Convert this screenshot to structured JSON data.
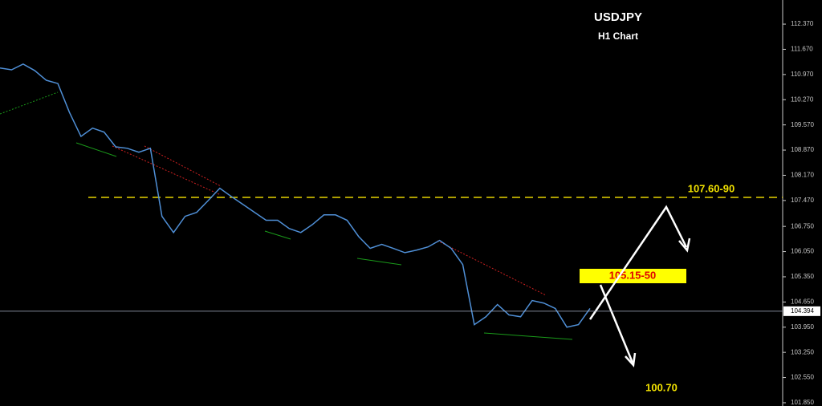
{
  "chart_data": {
    "type": "line",
    "title": "USDJPY",
    "subtitle": "H1 Chart",
    "categories": [
      null,
      null,
      null,
      null,
      null,
      null,
      null,
      null,
      null,
      null,
      null,
      null,
      null,
      null,
      null,
      null,
      null,
      null,
      null,
      null,
      null,
      null,
      null,
      null,
      null,
      null,
      null,
      null,
      null,
      null,
      null,
      null,
      null,
      null,
      null,
      null,
      null,
      null,
      null,
      null,
      null,
      null,
      null,
      null,
      null,
      null,
      null,
      null,
      null,
      null,
      null,
      null
    ],
    "series": [
      {
        "color": "#4f8fd6",
        "values": [
          111.15,
          111.1,
          111.26,
          111.08,
          110.81,
          110.72,
          109.92,
          109.25,
          109.48,
          109.37,
          108.96,
          108.92,
          108.81,
          108.92,
          107.03,
          106.58,
          107.03,
          107.14,
          107.47,
          107.81,
          107.58,
          107.36,
          107.14,
          106.92,
          106.92,
          106.69,
          106.58,
          106.8,
          107.07,
          107.07,
          106.92,
          106.47,
          106.14,
          106.25,
          106.14,
          106.02,
          106.09,
          106.18,
          106.36,
          106.14,
          105.69,
          104.02,
          104.24,
          104.58,
          104.29,
          104.24,
          104.69,
          104.62,
          104.47,
          103.95,
          104.02,
          104.47
        ]
      }
    ],
    "ylim": [
      101.76,
      113.04
    ],
    "yticks": [
      {
        "value": 112.37,
        "label": "112.370"
      },
      {
        "value": 111.67,
        "label": "111.670"
      },
      {
        "value": 110.97,
        "label": "110.970"
      },
      {
        "value": 110.27,
        "label": "110.270"
      },
      {
        "value": 109.57,
        "label": "109.570"
      },
      {
        "value": 108.87,
        "label": "108.870"
      },
      {
        "value": 108.17,
        "label": "108.170"
      },
      {
        "value": 107.47,
        "label": "107.470"
      },
      {
        "value": 106.75,
        "label": "106.750"
      },
      {
        "value": 106.05,
        "label": "106.050"
      },
      {
        "value": 105.35,
        "label": "105.350"
      },
      {
        "value": 104.65,
        "label": "104.650"
      },
      {
        "value": 103.95,
        "label": "103.950"
      },
      {
        "value": 103.25,
        "label": "103.250"
      },
      {
        "value": 102.55,
        "label": "102.550"
      },
      {
        "value": 101.85,
        "label": "101.850"
      }
    ],
    "current_price": 104.394,
    "annotations": {
      "resistance": "107.60-90",
      "pivot": "105.15-50",
      "target": "100.70"
    }
  }
}
